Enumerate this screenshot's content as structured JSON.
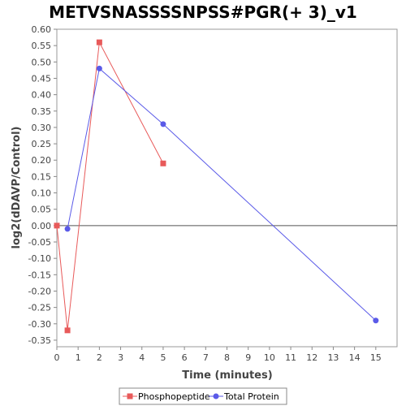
{
  "chart_data": {
    "type": "line",
    "title": "METVSNASSSSNPSS#PGR(+ 3)_v1",
    "xlabel": "Time (minutes)",
    "ylabel": "log2(dDAVP/Control)",
    "xlim": [
      0,
      16
    ],
    "ylim": [
      -0.37,
      0.6
    ],
    "x_ticks": [
      0,
      1,
      2,
      3,
      4,
      5,
      6,
      7,
      8,
      9,
      10,
      11,
      12,
      13,
      14,
      15
    ],
    "y_ticks": [
      0.6,
      0.55,
      0.5,
      0.45,
      0.4,
      0.35,
      0.3,
      0.25,
      0.2,
      0.15,
      0.1,
      0.05,
      0.0,
      -0.05,
      -0.1,
      -0.15,
      -0.2,
      -0.25,
      -0.3,
      -0.35
    ],
    "x_tick_labels": [
      "0",
      "1",
      "2",
      "3",
      "4",
      "5",
      "6",
      "7",
      "8",
      "9",
      "10",
      "11",
      "12",
      "13",
      "14",
      "15"
    ],
    "y_tick_labels": [
      "0.60",
      "0.55",
      "0.50",
      "0.45",
      "0.40",
      "0.35",
      "0.30",
      "0.25",
      "0.20",
      "0.15",
      "0.10",
      "0.05",
      "0.00",
      "-0.05",
      "-0.10",
      "-0.15",
      "-0.20",
      "-0.25",
      "-0.30",
      "-0.35"
    ],
    "zero_line": true,
    "grid": false,
    "legend_position": "bottom",
    "series": [
      {
        "name": "Phosphopeptide",
        "color": "#e85a5a",
        "marker": "square",
        "points": [
          [
            0,
            0.0
          ],
          [
            0.5,
            -0.32
          ],
          [
            2,
            0.56
          ],
          [
            5,
            0.19
          ]
        ]
      },
      {
        "name": "Total Protein",
        "color": "#5a5ae8",
        "marker": "circle",
        "points": [
          [
            0.5,
            -0.01
          ],
          [
            2,
            0.48
          ],
          [
            5,
            0.31
          ],
          [
            15,
            -0.29
          ]
        ]
      }
    ]
  }
}
